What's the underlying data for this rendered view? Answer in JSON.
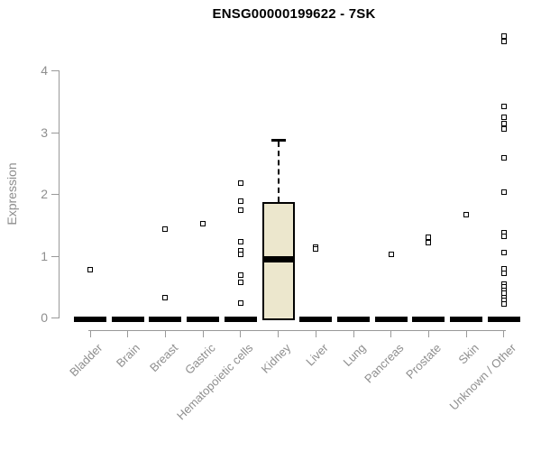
{
  "chart_data": {
    "type": "boxplot",
    "title": "ENSG00000199622 - 7SK",
    "xlabel": "",
    "ylabel": "Expression",
    "ylim": [
      0,
      4.6
    ],
    "yticks": [
      "0",
      "1",
      "2",
      "3",
      "4"
    ],
    "grid": false,
    "legend": null,
    "categories": [
      "Bladder",
      "Brain",
      "Breast",
      "Gastric",
      "Hematopoietic cells",
      "Kidney",
      "Liver",
      "Lung",
      "Pancreas",
      "Prostate",
      "Skin",
      "Unknown / Other"
    ],
    "boxes": [
      {
        "category": "Bladder",
        "q1": 0,
        "median": 0,
        "q3": 0,
        "whisker_low": 0,
        "whisker_high": 0,
        "outliers": [
          0.78
        ]
      },
      {
        "category": "Brain",
        "q1": 0,
        "median": 0,
        "q3": 0,
        "whisker_low": 0,
        "whisker_high": 0,
        "outliers": []
      },
      {
        "category": "Breast",
        "q1": 0,
        "median": 0,
        "q3": 0,
        "whisker_low": 0,
        "whisker_high": 0,
        "outliers": [
          1.44,
          0.33
        ]
      },
      {
        "category": "Gastric",
        "q1": 0,
        "median": 0,
        "q3": 0,
        "whisker_low": 0,
        "whisker_high": 0,
        "outliers": [
          1.52
        ]
      },
      {
        "category": "Hematopoietic cells",
        "q1": 0,
        "median": 0,
        "q3": 0,
        "whisker_low": 0,
        "whisker_high": 0,
        "outliers": [
          2.18,
          1.89,
          1.74,
          1.23,
          1.08,
          1.03,
          0.69,
          0.57,
          0.24
        ]
      },
      {
        "category": "Kidney",
        "q1": 0,
        "median": 0.95,
        "q3": 1.86,
        "whisker_low": 0,
        "whisker_high": 2.87,
        "outliers": []
      },
      {
        "category": "Liver",
        "q1": 0,
        "median": 0,
        "q3": 0,
        "whisker_low": 0,
        "whisker_high": 0,
        "outliers": [
          1.15,
          1.11
        ]
      },
      {
        "category": "Lung",
        "q1": 0,
        "median": 0,
        "q3": 0,
        "whisker_low": 0,
        "whisker_high": 0,
        "outliers": []
      },
      {
        "category": "Pancreas",
        "q1": 0,
        "median": 0,
        "q3": 0,
        "whisker_low": 0,
        "whisker_high": 0,
        "outliers": [
          1.03
        ]
      },
      {
        "category": "Prostate",
        "q1": 0,
        "median": 0,
        "q3": 0,
        "whisker_low": 0,
        "whisker_high": 0,
        "outliers": [
          1.3,
          1.22
        ]
      },
      {
        "category": "Skin",
        "q1": 0,
        "median": 0,
        "q3": 0,
        "whisker_low": 0,
        "whisker_high": 0,
        "outliers": [
          1.67
        ]
      },
      {
        "category": "Unknown / Other",
        "q1": 0,
        "median": 0,
        "q3": 0,
        "whisker_low": 0,
        "whisker_high": 0,
        "outliers": [
          4.55,
          4.47,
          3.42,
          3.25,
          3.14,
          3.05,
          2.59,
          2.03,
          1.37,
          1.32,
          1.05,
          0.8,
          0.72,
          0.55,
          0.5,
          0.44,
          0.4,
          0.33,
          0.28,
          0.22
        ]
      }
    ],
    "style": {
      "box_fill": "#ECE7CD",
      "box_border": "#000000",
      "median_color": "#000000",
      "outlier_fill": "#FFFFFF",
      "outlier_border": "#000000",
      "axis_color": "#999999",
      "tick_label_color": "#8E8E8E",
      "title_color": "#000000",
      "background": "#FFFFFF"
    }
  }
}
